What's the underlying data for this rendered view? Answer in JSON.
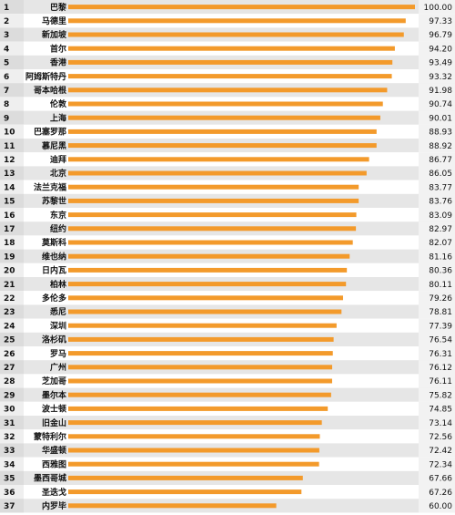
{
  "chart_data": {
    "type": "bar",
    "orientation": "horizontal",
    "title": "",
    "xlabel": "",
    "ylabel": "",
    "xlim": [
      0,
      100
    ],
    "grid": false,
    "legend": "none",
    "bar_color": "#F39A2B",
    "row_band_color": "#E6E6E6",
    "row_alt_color": "#FFFFFF",
    "value_box_color": "#F2F2F2",
    "ranks": [
      "1",
      "2",
      "3",
      "4",
      "5",
      "6",
      "7",
      "8",
      "9",
      "10",
      "11",
      "12",
      "13",
      "14",
      "15",
      "16",
      "17",
      "18",
      "19",
      "20",
      "21",
      "22",
      "23",
      "24",
      "25",
      "26",
      "27",
      "28",
      "29",
      "30",
      "31",
      "32",
      "33",
      "34",
      "35",
      "36",
      "37"
    ],
    "categories": [
      "巴黎",
      "马德里",
      "新加坡",
      "首尔",
      "香港",
      "阿姆斯特丹",
      "哥本哈根",
      "伦敦",
      "上海",
      "巴塞罗那",
      "慕尼黑",
      "迪拜",
      "北京",
      "法兰克福",
      "苏黎世",
      "东京",
      "纽约",
      "莫斯科",
      "维也纳",
      "日内瓦",
      "柏林",
      "多伦多",
      "悉尼",
      "深圳",
      "洛杉矶",
      "罗马",
      "广州",
      "芝加哥",
      "墨尔本",
      "波士顿",
      "旧金山",
      "蒙特利尔",
      "华盛顿",
      "西雅图",
      "墨西哥城",
      "圣迭戈",
      "内罗毕"
    ],
    "values": [
      100.0,
      97.33,
      96.79,
      94.2,
      93.49,
      93.32,
      91.98,
      90.74,
      90.01,
      88.93,
      88.92,
      86.77,
      86.05,
      83.77,
      83.76,
      83.09,
      82.97,
      82.07,
      81.16,
      80.36,
      80.11,
      79.26,
      78.81,
      77.39,
      76.54,
      76.31,
      76.12,
      76.11,
      75.82,
      74.85,
      73.14,
      72.56,
      72.42,
      72.34,
      67.66,
      67.26,
      60.0
    ],
    "value_labels": [
      "100.00",
      "97.33",
      "96.79",
      "94.20",
      "93.49",
      "93.32",
      "91.98",
      "90.74",
      "90.01",
      "88.93",
      "88.92",
      "86.77",
      "86.05",
      "83.77",
      "83.76",
      "83.09",
      "82.97",
      "82.07",
      "81.16",
      "80.36",
      "80.11",
      "79.26",
      "78.81",
      "77.39",
      "76.54",
      "76.31",
      "76.12",
      "76.11",
      "75.82",
      "74.85",
      "73.14",
      "72.56",
      "72.42",
      "72.34",
      "67.66",
      "67.26",
      "60.00"
    ]
  }
}
